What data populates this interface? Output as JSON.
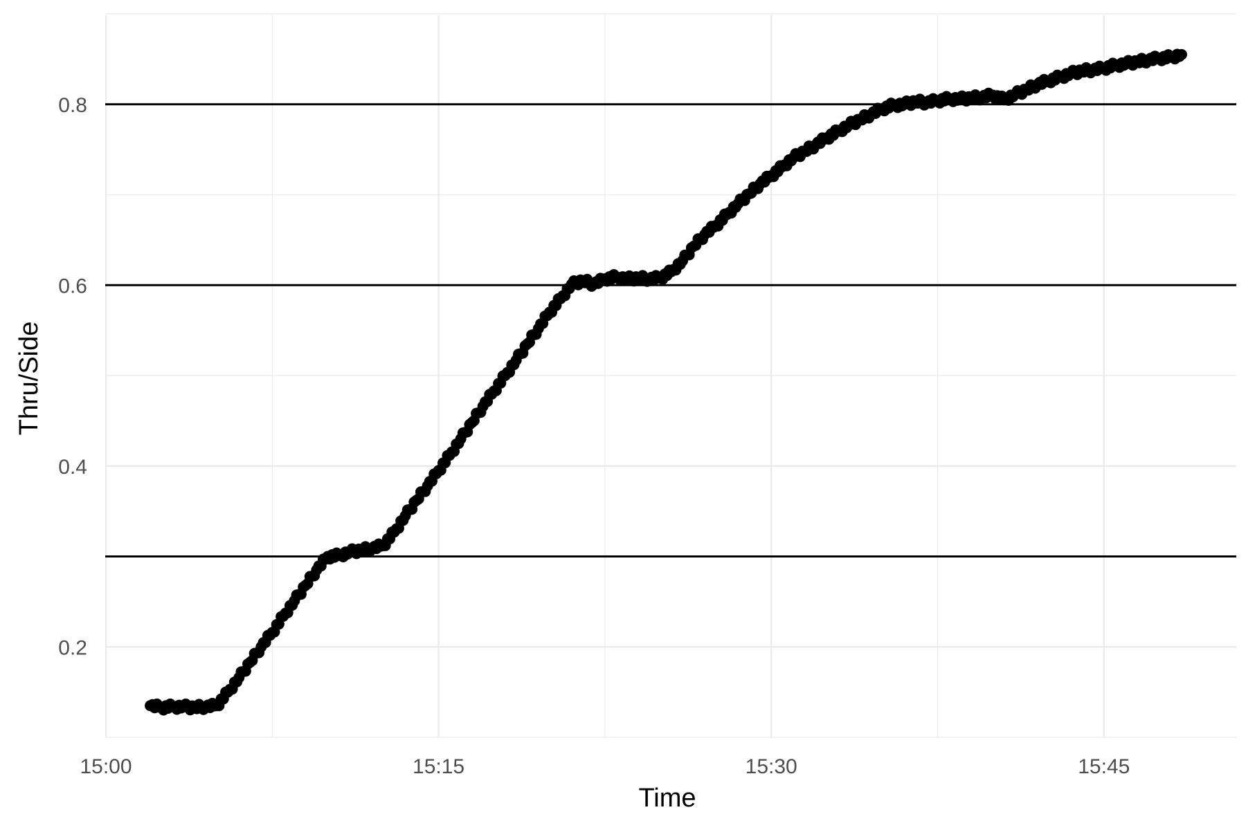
{
  "chart_data": {
    "type": "scatter",
    "title": "",
    "xlabel": "Time",
    "ylabel": "Thru/Side",
    "x_is_time": true,
    "xlim": [
      "15:00",
      "15:50"
    ],
    "ylim": [
      0.1,
      0.9
    ],
    "x_ticks": [
      "15:00",
      "15:15",
      "15:30",
      "15:45"
    ],
    "y_ticks": [
      "0.2",
      "0.4",
      "0.6",
      "0.8"
    ],
    "hlines": [
      0.3,
      0.6,
      0.8
    ],
    "grid": true,
    "legend": "none",
    "point_color": "#000000",
    "series": [
      {
        "x": [
          "15:02:00",
          "15:02:30",
          "15:03:00",
          "15:03:30",
          "15:04:00",
          "15:04:30",
          "15:05:00",
          "15:05:30",
          "15:06:00",
          "15:06:30",
          "15:07:00",
          "15:07:30",
          "15:08:00",
          "15:08:30",
          "15:09:00",
          "15:09:30",
          "15:10:00",
          "15:10:30",
          "15:11:00",
          "15:11:30",
          "15:12:00",
          "15:12:30",
          "15:13:00",
          "15:13:30",
          "15:14:00",
          "15:14:30",
          "15:15:00",
          "15:15:30",
          "15:16:00",
          "15:16:30",
          "15:17:00",
          "15:17:30",
          "15:18:00",
          "15:18:30",
          "15:19:00",
          "15:19:30",
          "15:20:00",
          "15:20:30",
          "15:21:00",
          "15:21:30",
          "15:22:00",
          "15:22:30",
          "15:23:00",
          "15:23:30",
          "15:24:00",
          "15:24:30",
          "15:25:00",
          "15:25:30",
          "15:26:00",
          "15:26:30",
          "15:27:00",
          "15:27:30",
          "15:28:00",
          "15:28:30",
          "15:29:00",
          "15:29:30",
          "15:30:00",
          "15:30:30",
          "15:31:00",
          "15:31:30",
          "15:32:00",
          "15:32:30",
          "15:33:00",
          "15:33:30",
          "15:34:00",
          "15:34:30",
          "15:35:00",
          "15:35:30",
          "15:36:00",
          "15:36:30",
          "15:37:00",
          "15:37:30",
          "15:38:00",
          "15:38:30",
          "15:39:00",
          "15:39:30",
          "15:40:00",
          "15:40:30",
          "15:41:00",
          "15:41:30",
          "15:42:00",
          "15:42:30",
          "15:43:00",
          "15:43:30",
          "15:44:00",
          "15:44:30",
          "15:45:00",
          "15:45:30",
          "15:46:00",
          "15:46:30",
          "15:47:00",
          "15:47:30",
          "15:48:00",
          "15:48:30"
        ],
        "y": [
          0.135,
          0.133,
          0.134,
          0.134,
          0.133,
          0.134,
          0.135,
          0.15,
          0.166,
          0.183,
          0.2,
          0.216,
          0.234,
          0.251,
          0.268,
          0.285,
          0.3,
          0.301,
          0.305,
          0.307,
          0.309,
          0.312,
          0.327,
          0.345,
          0.362,
          0.378,
          0.395,
          0.412,
          0.43,
          0.448,
          0.466,
          0.483,
          0.5,
          0.517,
          0.535,
          0.552,
          0.57,
          0.585,
          0.601,
          0.605,
          0.601,
          0.607,
          0.609,
          0.607,
          0.608,
          0.607,
          0.608,
          0.615,
          0.627,
          0.643,
          0.656,
          0.666,
          0.678,
          0.69,
          0.701,
          0.712,
          0.721,
          0.731,
          0.741,
          0.748,
          0.755,
          0.763,
          0.77,
          0.777,
          0.783,
          0.789,
          0.795,
          0.799,
          0.8,
          0.803,
          0.802,
          0.804,
          0.806,
          0.806,
          0.807,
          0.808,
          0.81,
          0.805,
          0.811,
          0.816,
          0.822,
          0.826,
          0.83,
          0.834,
          0.837,
          0.838,
          0.84,
          0.843,
          0.845,
          0.847,
          0.849,
          0.851,
          0.852,
          0.855
        ]
      }
    ]
  }
}
